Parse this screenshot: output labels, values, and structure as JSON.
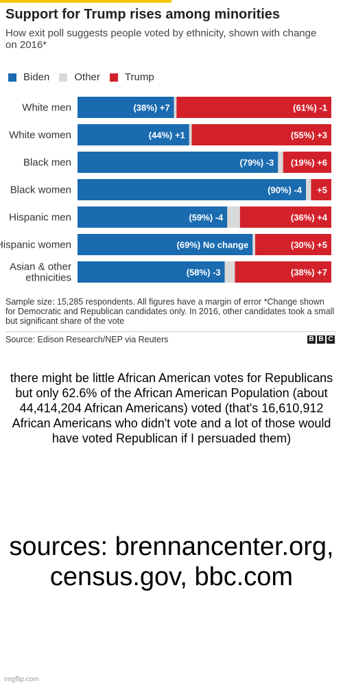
{
  "header": {
    "title": "Support for Trump rises among minorities",
    "subtitle": "How exit poll suggests people voted by ethnicity, shown with change on 2016*"
  },
  "legend": [
    {
      "label": "Biden",
      "color": "#1a6bb0"
    },
    {
      "label": "Other",
      "color": "#d9d9d9"
    },
    {
      "label": "Trump",
      "color": "#d3212b"
    }
  ],
  "chart_data": {
    "type": "bar",
    "orientation": "horizontal",
    "stacked": true,
    "title": "Support for Trump rises among minorities",
    "subtitle": "How exit poll suggests people voted by ethnicity, shown with change on 2016*",
    "categories": [
      "White men",
      "White women",
      "Black men",
      "Black women",
      "Hispanic men",
      "Hispanic women",
      "Asian & other ethnicities"
    ],
    "series": [
      {
        "name": "Biden",
        "color": "#1a6bb0",
        "values": [
          38,
          44,
          79,
          90,
          59,
          69,
          58
        ],
        "labels": [
          "(38%) +7",
          "(44%) +1",
          "(79%) -3",
          "(90%) -4",
          "(59%) -4",
          "(69%) No change",
          "(58%) -3"
        ]
      },
      {
        "name": "Other",
        "color": "#d9d9d9",
        "values": [
          1,
          1,
          2,
          2,
          5,
          1,
          4
        ],
        "labels": [
          "",
          "",
          "",
          "",
          "",
          "",
          ""
        ]
      },
      {
        "name": "Trump",
        "color": "#d3212b",
        "values": [
          61,
          55,
          19,
          8,
          36,
          30,
          38
        ],
        "labels": [
          "(61%) -1",
          "(55%) +3",
          "(19%) +6",
          "+5",
          "(36%) +4",
          "(30%) +5",
          "(38%) +7"
        ]
      }
    ],
    "legend_position": "top-left"
  },
  "notes": "Sample size: 15,285 respondents. All figures have a margin of error *Change shown for Democratic and Republican candidates only. In 2016, other candidates took a small but significant share of the vote",
  "source": "Source: Edison Research/NEP via Reuters",
  "logo_letters": [
    "B",
    "B",
    "C"
  ],
  "caption": "there might be little African American votes for Republicans but only 62.6% of the African American Population (about 44,414,204 African Americans) voted (that's 16,610,912 African Americans who didn't vote and a lot of those would have voted Republican if I persuaded them)",
  "sources_text": "sources: brennancenter.org, census.gov, bbc.com",
  "watermark": "imgflip.com"
}
